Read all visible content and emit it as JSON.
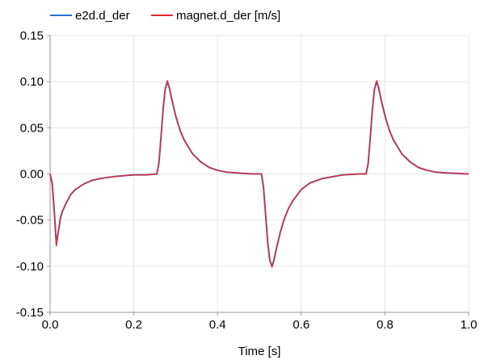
{
  "chart_data": {
    "type": "line",
    "title": "",
    "xlabel": "Time [s]",
    "ylabel": "",
    "xlim": [
      0.0,
      1.0
    ],
    "ylim": [
      -0.15,
      0.15
    ],
    "x_ticks": [
      0.0,
      0.2,
      0.4,
      0.6,
      0.8,
      1.0
    ],
    "x_tick_labels": [
      "0.0",
      "0.2",
      "0.4",
      "0.6",
      "0.8",
      "1.0"
    ],
    "y_ticks": [
      -0.15,
      -0.1,
      -0.05,
      0.0,
      0.05,
      0.1,
      0.15
    ],
    "y_tick_labels": [
      "-0.15",
      "-0.10",
      "-0.05",
      "0.00",
      "0.05",
      "0.10",
      "0.15"
    ],
    "grid": true,
    "legend_position": "top-left, above plot",
    "series": [
      {
        "name": "e2d.d_der",
        "color": "#2a6fd6",
        "x": [
          0.0,
          0.005,
          0.01,
          0.015,
          0.02,
          0.025,
          0.03,
          0.04,
          0.05,
          0.06,
          0.08,
          0.1,
          0.12,
          0.15,
          0.2,
          0.23,
          0.255,
          0.26,
          0.265,
          0.27,
          0.275,
          0.28,
          0.285,
          0.29,
          0.3,
          0.31,
          0.32,
          0.34,
          0.36,
          0.38,
          0.4,
          0.42,
          0.45,
          0.48,
          0.505,
          0.51,
          0.515,
          0.52,
          0.525,
          0.53,
          0.535,
          0.54,
          0.55,
          0.56,
          0.57,
          0.58,
          0.6,
          0.62,
          0.65,
          0.7,
          0.74,
          0.755,
          0.76,
          0.765,
          0.77,
          0.775,
          0.78,
          0.785,
          0.79,
          0.8,
          0.81,
          0.82,
          0.84,
          0.86,
          0.88,
          0.9,
          0.92,
          0.95,
          1.0
        ],
        "values": [
          0.0,
          -0.01,
          -0.04,
          -0.076,
          -0.062,
          -0.047,
          -0.04,
          -0.03,
          -0.022,
          -0.017,
          -0.011,
          -0.007,
          -0.005,
          -0.003,
          -0.001,
          -0.001,
          0.0,
          0.012,
          0.04,
          0.07,
          0.092,
          0.1,
          0.093,
          0.082,
          0.063,
          0.048,
          0.037,
          0.022,
          0.013,
          0.007,
          0.004,
          0.002,
          0.001,
          0.0,
          0.0,
          -0.015,
          -0.045,
          -0.075,
          -0.094,
          -0.1,
          -0.093,
          -0.082,
          -0.063,
          -0.048,
          -0.037,
          -0.029,
          -0.017,
          -0.01,
          -0.005,
          -0.001,
          0.0,
          0.0,
          0.012,
          0.04,
          0.07,
          0.092,
          0.1,
          0.093,
          0.082,
          0.063,
          0.048,
          0.037,
          0.022,
          0.013,
          0.007,
          0.004,
          0.002,
          0.001,
          0.0
        ]
      },
      {
        "name": "magnet.d_der [m/s]",
        "color": "#e8282c",
        "x": [
          0.0,
          0.005,
          0.01,
          0.015,
          0.02,
          0.025,
          0.03,
          0.04,
          0.05,
          0.06,
          0.08,
          0.1,
          0.12,
          0.15,
          0.2,
          0.23,
          0.255,
          0.26,
          0.265,
          0.27,
          0.275,
          0.28,
          0.285,
          0.29,
          0.3,
          0.31,
          0.32,
          0.34,
          0.36,
          0.38,
          0.4,
          0.42,
          0.45,
          0.48,
          0.505,
          0.51,
          0.515,
          0.52,
          0.525,
          0.53,
          0.535,
          0.54,
          0.55,
          0.56,
          0.57,
          0.58,
          0.6,
          0.62,
          0.65,
          0.7,
          0.74,
          0.755,
          0.76,
          0.765,
          0.77,
          0.775,
          0.78,
          0.785,
          0.79,
          0.8,
          0.81,
          0.82,
          0.84,
          0.86,
          0.88,
          0.9,
          0.92,
          0.95,
          1.0
        ],
        "values": [
          0.0,
          -0.012,
          -0.042,
          -0.078,
          -0.061,
          -0.046,
          -0.04,
          -0.03,
          -0.022,
          -0.017,
          -0.011,
          -0.007,
          -0.005,
          -0.003,
          -0.001,
          -0.001,
          0.0,
          0.011,
          0.039,
          0.07,
          0.092,
          0.101,
          0.094,
          0.083,
          0.063,
          0.048,
          0.037,
          0.022,
          0.013,
          0.007,
          0.004,
          0.002,
          0.001,
          0.0,
          0.0,
          -0.016,
          -0.046,
          -0.076,
          -0.094,
          -0.101,
          -0.094,
          -0.083,
          -0.063,
          -0.048,
          -0.037,
          -0.029,
          -0.017,
          -0.01,
          -0.005,
          -0.001,
          0.0,
          0.0,
          0.011,
          0.039,
          0.07,
          0.092,
          0.101,
          0.094,
          0.083,
          0.063,
          0.048,
          0.037,
          0.022,
          0.013,
          0.007,
          0.004,
          0.002,
          0.001,
          0.0
        ]
      }
    ]
  }
}
